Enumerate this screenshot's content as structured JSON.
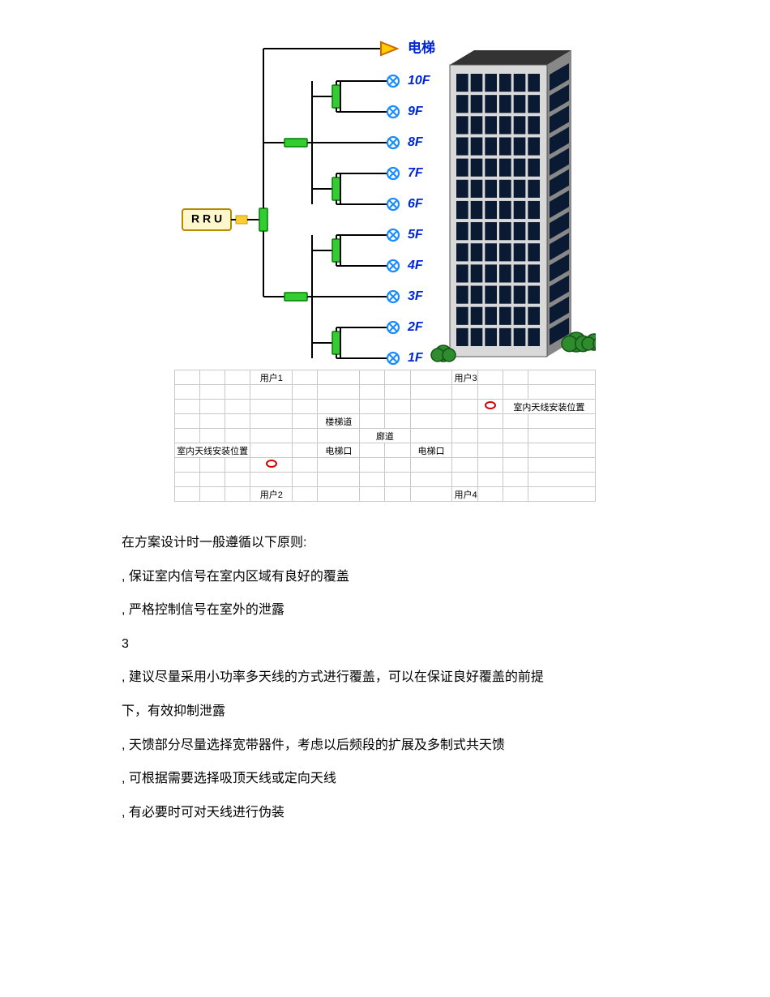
{
  "diagram": {
    "rru_label": "R R U",
    "elevator_label": "电梯",
    "floors": [
      "10F",
      "9F",
      "8F",
      "7F",
      "6F",
      "5F",
      "4F",
      "3F",
      "2F",
      "1F"
    ],
    "colors": {
      "rru_fill": "#fff7cc",
      "rru_border": "#b58a00",
      "line": "#000000",
      "splitter_fill": "#33cc33",
      "splitter_border": "#008000",
      "antenna_stroke": "#1a8cff",
      "antenna_fill": "#ffffff",
      "elevator_fill": "#ffcc00",
      "elevator_stroke": "#cc6600",
      "floor_text": "#0026d9",
      "building_body": "#d9d9d9",
      "building_side": "#888888",
      "building_roof": "#333333",
      "window": "#0a1a33",
      "bush_fill": "#2e8b2e",
      "bush_stroke": "#145214"
    }
  },
  "floorplan": {
    "user1": "用户1",
    "user2": "用户2",
    "user3": "用户3",
    "user4": "用户4",
    "stairwell": "楼梯道",
    "corridor": "廊道",
    "elevator_exit": "电梯口",
    "antenna_pos": "室内天线安装位置"
  },
  "text": {
    "heading": "在方案设计时一般遵循以下原则:",
    "p1": ", 保证室内信号在室内区域有良好的覆盖",
    "p2": ", 严格控制信号在室外的泄露",
    "p3": "3",
    "p4": ", 建议尽量采用小功率多天线的方式进行覆盖，可以在保证良好覆盖的前提",
    "p5": "下，有效抑制泄露",
    "p6": ", 天馈部分尽量选择宽带器件，考虑以后频段的扩展及多制式共天馈",
    "p7": ", 可根据需要选择吸顶天线或定向天线",
    "p8": ", 有必要时可对天线进行伪装"
  }
}
